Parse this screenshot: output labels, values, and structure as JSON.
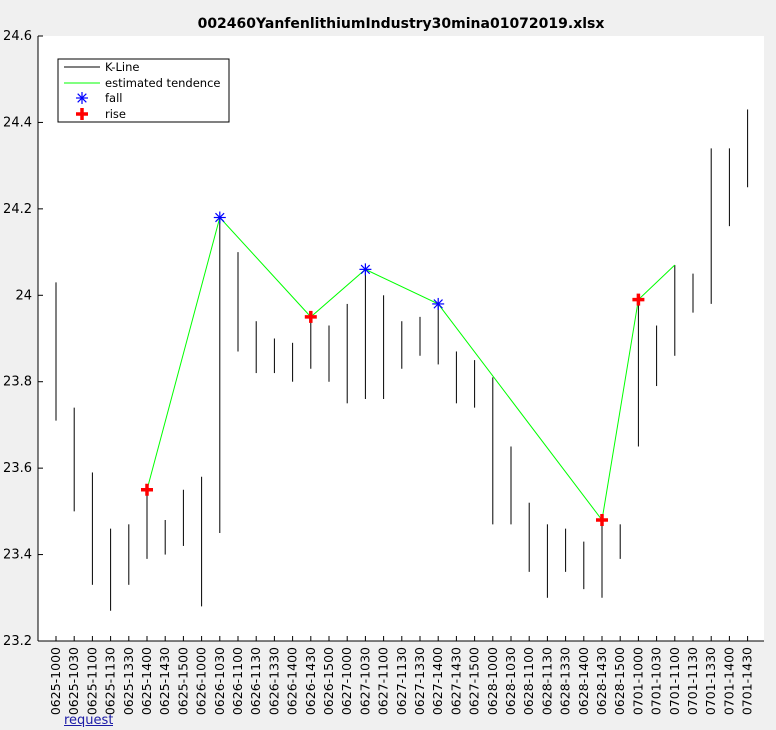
{
  "chart_data": {
    "type": "line",
    "title": "002460YanfenlithiumIndustry30mina01072019.xlsx",
    "ylim": [
      23.2,
      24.6
    ],
    "yticks": [
      23.2,
      23.4,
      23.6,
      23.8,
      24,
      24.2,
      24.4,
      24.6
    ],
    "ytick_labels": [
      "23.2",
      "23.4",
      "23.6",
      "23.8",
      "24",
      "24.2",
      "24.4",
      "24.6"
    ],
    "grid": false,
    "legend_position": "top-left",
    "categories": [
      "0625-1000",
      "0625-1030",
      "0625-1100",
      "0625-1130",
      "0625-1330",
      "0625-1400",
      "0625-1430",
      "0625-1500",
      "0626-1000",
      "0626-1030",
      "0626-1100",
      "0626-1130",
      "0626-1330",
      "0626-1400",
      "0626-1430",
      "0626-1500",
      "0627-1000",
      "0627-1030",
      "0627-1100",
      "0627-1130",
      "0627-1330",
      "0627-1400",
      "0627-1430",
      "0627-1500",
      "0628-1000",
      "0628-1030",
      "0628-1100",
      "0628-1130",
      "0628-1330",
      "0628-1400",
      "0628-1430",
      "0628-1500",
      "0701-1000",
      "0701-1030",
      "0701-1100",
      "0701-1130",
      "0701-1330",
      "0701-1400",
      "0701-1430"
    ],
    "series": [
      {
        "name": "K-Line",
        "color": "#000000",
        "low": [
          23.71,
          23.5,
          23.33,
          23.27,
          23.33,
          23.39,
          23.4,
          23.42,
          23.28,
          23.45,
          23.87,
          23.82,
          23.82,
          23.8,
          23.83,
          23.8,
          23.75,
          23.76,
          23.76,
          23.83,
          23.86,
          23.84,
          23.75,
          23.74,
          23.47,
          23.47,
          23.36,
          23.3,
          23.36,
          23.32,
          23.3,
          23.39,
          23.65,
          23.79,
          23.86,
          23.96,
          23.98,
          24.16,
          24.25
        ],
        "high": [
          24.03,
          23.74,
          23.59,
          23.46,
          23.47,
          23.55,
          23.48,
          23.55,
          23.58,
          24.18,
          24.1,
          23.94,
          23.9,
          23.89,
          23.95,
          23.93,
          23.98,
          24.06,
          24.0,
          23.94,
          23.95,
          23.98,
          23.87,
          23.85,
          23.81,
          23.65,
          23.52,
          23.47,
          23.46,
          23.43,
          23.48,
          23.47,
          23.99,
          23.93,
          24.07,
          24.05,
          24.34,
          24.34,
          24.43
        ]
      },
      {
        "name": "estimated tendence",
        "color": "#00ff00",
        "points": [
          {
            "x": "0625-1400",
            "y": 23.55
          },
          {
            "x": "0626-1030",
            "y": 24.18
          },
          {
            "x": "0626-1430",
            "y": 23.95
          },
          {
            "x": "0627-1030",
            "y": 24.06
          },
          {
            "x": "0627-1400",
            "y": 23.98
          },
          {
            "x": "0628-1430",
            "y": 23.48
          },
          {
            "x": "0701-1000",
            "y": 23.99
          },
          {
            "x": "0701-1100",
            "y": 24.07
          }
        ]
      },
      {
        "name": "fall",
        "color": "#0000ff",
        "marker": "asterisk",
        "points": [
          {
            "x": "0626-1030",
            "y": 24.18
          },
          {
            "x": "0627-1030",
            "y": 24.06
          },
          {
            "x": "0627-1400",
            "y": 23.98
          }
        ]
      },
      {
        "name": "rise",
        "color": "#ff0000",
        "marker": "plus",
        "points": [
          {
            "x": "0625-1400",
            "y": 23.55
          },
          {
            "x": "0626-1430",
            "y": 23.95
          },
          {
            "x": "0628-1430",
            "y": 23.48
          },
          {
            "x": "0701-1000",
            "y": 23.99
          }
        ]
      }
    ]
  },
  "footer_text": "request"
}
